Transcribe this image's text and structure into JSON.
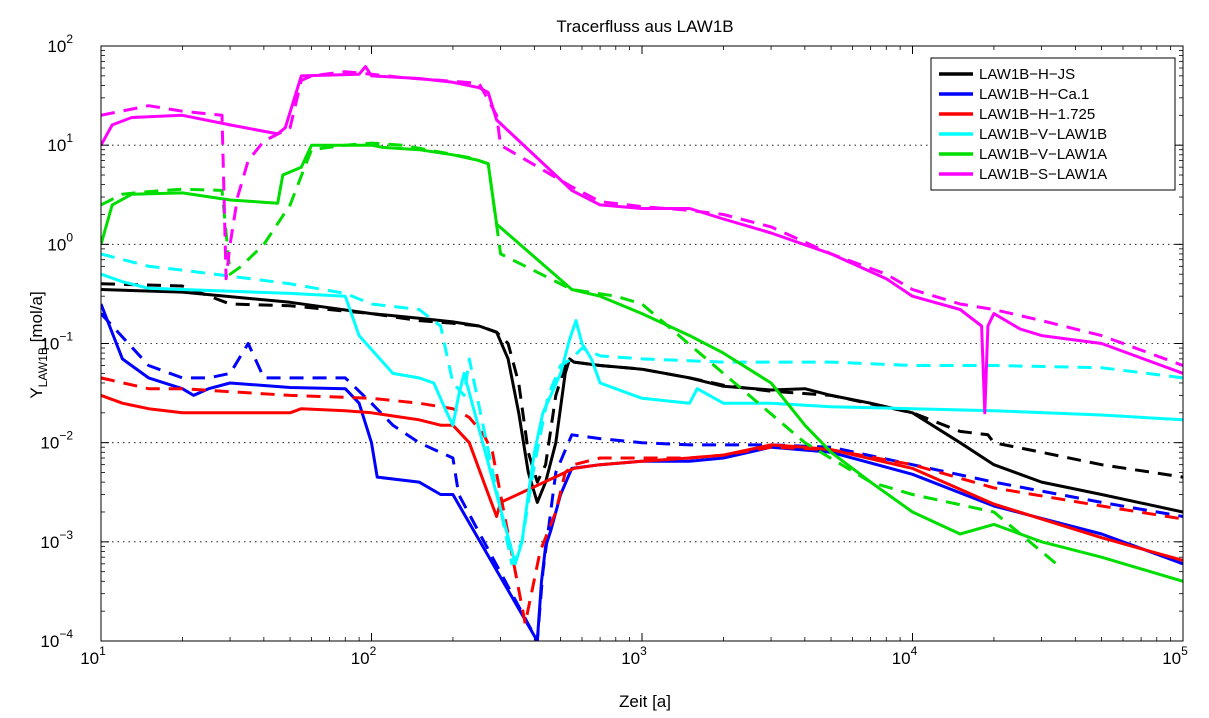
{
  "chart_data": {
    "type": "line",
    "title": "Tracerfluss aus LAW1B",
    "xlabel": "Zeit [a]",
    "ylabel": {
      "main": "Y",
      "subscript": "LAW1B",
      "unit": " [mol/a]"
    },
    "xscale": "log",
    "yscale": "log",
    "xlim": [
      10,
      100000
    ],
    "ylim": [
      0.0001,
      100
    ],
    "x_ticks": [
      10,
      100,
      1000,
      10000,
      100000
    ],
    "y_ticks": [
      0.0001,
      0.001,
      0.01,
      0.1,
      1,
      10,
      100
    ],
    "x_tick_labels": [
      {
        "base": "10",
        "exp": "1"
      },
      {
        "base": "10",
        "exp": "2"
      },
      {
        "base": "10",
        "exp": "3"
      },
      {
        "base": "10",
        "exp": "4"
      },
      {
        "base": "10",
        "exp": "5"
      }
    ],
    "y_tick_labels": [
      {
        "base": "10",
        "exp": "−4"
      },
      {
        "base": "10",
        "exp": "−3"
      },
      {
        "base": "10",
        "exp": "−2"
      },
      {
        "base": "10",
        "exp": "−1"
      },
      {
        "base": "10",
        "exp": "0"
      },
      {
        "base": "10",
        "exp": "1"
      },
      {
        "base": "10",
        "exp": "2"
      }
    ],
    "grid": "y-dotted",
    "legend_position": "top-right",
    "series": [
      {
        "name": "LAW1B−H−JS",
        "color": "#000000",
        "dash": "solid",
        "legend": true,
        "x": [
          10,
          20,
          50,
          100,
          150,
          200,
          250,
          290,
          320,
          350,
          380,
          410,
          440,
          480,
          520,
          540,
          560,
          700,
          1000,
          1500,
          2000,
          3000,
          4000,
          5000,
          7000,
          10000,
          15000,
          20000,
          30000,
          50000,
          100000
        ],
        "y": [
          0.35,
          0.33,
          0.26,
          0.2,
          0.18,
          0.165,
          0.15,
          0.13,
          0.07,
          0.02,
          0.005,
          0.0025,
          0.004,
          0.01,
          0.05,
          0.07,
          0.065,
          0.06,
          0.055,
          0.045,
          0.037,
          0.034,
          0.035,
          0.03,
          0.025,
          0.02,
          0.01,
          0.006,
          0.004,
          0.003,
          0.002
        ]
      },
      {
        "name": "LAW1B−H−JS",
        "color": "#000000",
        "dash": "dashed",
        "legend": false,
        "x": [
          10,
          20,
          30,
          50,
          100,
          150,
          200,
          250,
          290,
          320,
          350,
          380,
          410,
          440,
          480,
          520,
          560,
          700,
          1000,
          1500,
          2000,
          3000,
          5000,
          10000,
          15000,
          19000,
          20000,
          30000,
          50000,
          100000
        ],
        "y": [
          0.4,
          0.38,
          0.25,
          0.24,
          0.2,
          0.17,
          0.16,
          0.15,
          0.13,
          0.1,
          0.04,
          0.008,
          0.004,
          0.006,
          0.03,
          0.06,
          0.065,
          0.06,
          0.055,
          0.045,
          0.038,
          0.033,
          0.03,
          0.02,
          0.013,
          0.012,
          0.01,
          0.008,
          0.006,
          0.0045
        ]
      },
      {
        "name": "LAW1B−H−Ca.1",
        "color": "#0000ff",
        "dash": "solid",
        "legend": true,
        "x": [
          10,
          12,
          15,
          20,
          22,
          25,
          30,
          50,
          80,
          90,
          100,
          105,
          150,
          180,
          200,
          410,
          425,
          440,
          460,
          500,
          550,
          700,
          1000,
          1500,
          2000,
          3000,
          5000,
          10000,
          20000,
          50000,
          100000
        ],
        "y": [
          0.25,
          0.07,
          0.045,
          0.035,
          0.03,
          0.035,
          0.04,
          0.036,
          0.035,
          0.025,
          0.01,
          0.0045,
          0.004,
          0.003,
          0.003,
          0.0001,
          0.0004,
          0.0009,
          0.0013,
          0.003,
          0.0055,
          0.006,
          0.0065,
          0.0065,
          0.007,
          0.009,
          0.008,
          0.0048,
          0.0023,
          0.0012,
          0.0006
        ]
      },
      {
        "name": "LAW1B−H−Ca.1",
        "color": "#0000ff",
        "dash": "dashed",
        "legend": false,
        "x": [
          10,
          15,
          20,
          25,
          30,
          35,
          40,
          50,
          80,
          100,
          120,
          150,
          200,
          210,
          410,
          430,
          480,
          550,
          700,
          1000,
          1500,
          2000,
          3000,
          5000,
          10000,
          20000,
          50000,
          100000
        ],
        "y": [
          0.2,
          0.06,
          0.045,
          0.045,
          0.05,
          0.1,
          0.045,
          0.045,
          0.045,
          0.025,
          0.015,
          0.01,
          0.007,
          0.003,
          0.0001,
          0.0005,
          0.005,
          0.012,
          0.011,
          0.01,
          0.0095,
          0.0095,
          0.0095,
          0.009,
          0.006,
          0.004,
          0.0025,
          0.0018
        ]
      },
      {
        "name": "LAW1B−H−1.725",
        "color": "#ff0000",
        "dash": "solid",
        "legend": true,
        "x": [
          10,
          12,
          15,
          20,
          50,
          55,
          80,
          100,
          150,
          180,
          200,
          230,
          260,
          290,
          300,
          560,
          700,
          1000,
          1500,
          2000,
          3000,
          4000,
          5000,
          10000,
          20000,
          50000,
          100000
        ],
        "y": [
          0.03,
          0.025,
          0.022,
          0.02,
          0.02,
          0.022,
          0.021,
          0.02,
          0.017,
          0.015,
          0.015,
          0.01,
          0.004,
          0.0018,
          0.0025,
          0.0055,
          0.006,
          0.0065,
          0.007,
          0.0075,
          0.0095,
          0.009,
          0.0085,
          0.0055,
          0.0024,
          0.0011,
          0.00065
        ]
      },
      {
        "name": "LAW1B−H−1.725",
        "color": "#ff0000",
        "dash": "dashed",
        "legend": false,
        "x": [
          10,
          15,
          20,
          50,
          100,
          150,
          200,
          230,
          260,
          280,
          370,
          390,
          420,
          480,
          520,
          560,
          700,
          1000,
          1500,
          2000,
          3000,
          5000,
          10000,
          20000,
          50000,
          100000
        ],
        "y": [
          0.045,
          0.035,
          0.035,
          0.03,
          0.028,
          0.025,
          0.022,
          0.018,
          0.012,
          0.008,
          0.00015,
          0.0003,
          0.0008,
          0.002,
          0.005,
          0.006,
          0.007,
          0.007,
          0.007,
          0.0075,
          0.009,
          0.0085,
          0.006,
          0.0035,
          0.0023,
          0.0017
        ]
      },
      {
        "name": "LAW1B−V−LAW1B",
        "color": "#00ffff",
        "dash": "solid",
        "legend": true,
        "x": [
          10,
          12,
          15,
          20,
          50,
          80,
          90,
          120,
          150,
          170,
          190,
          200,
          210,
          220,
          340,
          360,
          380,
          400,
          430,
          460,
          500,
          540,
          570,
          600,
          650,
          700,
          1000,
          1500,
          1600,
          2000,
          3000,
          5000,
          10000,
          20000,
          50000,
          100000
        ],
        "y": [
          0.5,
          0.42,
          0.36,
          0.35,
          0.32,
          0.3,
          0.12,
          0.05,
          0.045,
          0.04,
          0.02,
          0.015,
          0.03,
          0.05,
          0.0006,
          0.001,
          0.003,
          0.008,
          0.02,
          0.03,
          0.05,
          0.11,
          0.17,
          0.1,
          0.07,
          0.04,
          0.028,
          0.025,
          0.035,
          0.025,
          0.025,
          0.023,
          0.022,
          0.021,
          0.019,
          0.017
        ]
      },
      {
        "name": "LAW1B−V−LAW1B",
        "color": "#00ffff",
        "dash": "dashed",
        "legend": false,
        "x": [
          10,
          15,
          20,
          50,
          80,
          100,
          150,
          180,
          200,
          220,
          230,
          330,
          360,
          400,
          450,
          500,
          550,
          600,
          700,
          1000,
          2000,
          3000,
          5000,
          10000,
          20000,
          50000,
          100000
        ],
        "y": [
          0.8,
          0.6,
          0.55,
          0.4,
          0.32,
          0.25,
          0.22,
          0.15,
          0.04,
          0.03,
          0.07,
          0.0006,
          0.001,
          0.006,
          0.03,
          0.06,
          0.07,
          0.09,
          0.075,
          0.07,
          0.065,
          0.065,
          0.065,
          0.06,
          0.06,
          0.057,
          0.045
        ]
      },
      {
        "name": "LAW1B−V−LAW1A",
        "color": "#00dd00",
        "dash": "solid",
        "legend": true,
        "x": [
          10,
          11,
          13,
          20,
          30,
          45,
          47,
          55,
          60,
          100,
          110,
          150,
          200,
          250,
          270,
          290,
          550,
          700,
          1000,
          1500,
          2000,
          3000,
          4000,
          5000,
          7000,
          10000,
          15000,
          20000,
          30000,
          50000,
          100000
        ],
        "y": [
          1.0,
          2.5,
          3.2,
          3.3,
          2.8,
          2.6,
          5.0,
          6.0,
          10.0,
          10.0,
          9.5,
          9.0,
          8.0,
          7.0,
          6.5,
          1.6,
          0.35,
          0.3,
          0.2,
          0.12,
          0.08,
          0.04,
          0.015,
          0.008,
          0.004,
          0.002,
          0.0012,
          0.0015,
          0.001,
          0.0007,
          0.0004
        ]
      },
      {
        "name": "LAW1B−V−LAW1A",
        "color": "#00dd00",
        "dash": "dashed",
        "legend": false,
        "x": [
          10,
          12,
          15,
          20,
          28,
          30,
          33,
          40,
          50,
          60,
          80,
          100,
          130,
          180,
          230,
          270,
          300,
          550,
          800,
          1000,
          2000,
          4000,
          7000,
          10000,
          20000,
          34000
        ],
        "y": [
          2.5,
          3.2,
          3.4,
          3.6,
          3.5,
          0.5,
          0.6,
          1.0,
          2.5,
          9.0,
          10.0,
          10.5,
          10.0,
          8.5,
          7.5,
          6.5,
          0.8,
          0.35,
          0.3,
          0.25,
          0.05,
          0.01,
          0.004,
          0.003,
          0.002,
          0.0006
        ]
      },
      {
        "name": "LAW1B−S−LAW1A",
        "color": "#ff00ff",
        "dash": "solid",
        "legend": true,
        "x": [
          10,
          11,
          13,
          20,
          30,
          45,
          48,
          55,
          90,
          95,
          100,
          150,
          200,
          250,
          270,
          290,
          550,
          700,
          1000,
          1500,
          2000,
          3000,
          5000,
          8000,
          10000,
          15000,
          18000,
          18500,
          19000,
          20000,
          25000,
          30000,
          50000,
          100000
        ],
        "y": [
          10.0,
          16.0,
          19.0,
          20.0,
          16.0,
          13.0,
          15.0,
          50.0,
          52.0,
          62.0,
          50.0,
          47.0,
          43.0,
          38.0,
          34.0,
          18.0,
          3.5,
          2.5,
          2.3,
          2.3,
          1.8,
          1.3,
          0.8,
          0.45,
          0.3,
          0.22,
          0.15,
          0.02,
          0.15,
          0.2,
          0.14,
          0.12,
          0.1,
          0.05
        ]
      },
      {
        "name": "LAW1B−S−LAW1A",
        "color": "#ff00ff",
        "dash": "dashed",
        "legend": false,
        "x": [
          10,
          15,
          20,
          28,
          29,
          30,
          32,
          35,
          40,
          50,
          55,
          60,
          80,
          100,
          130,
          180,
          250,
          290,
          300,
          550,
          700,
          1000,
          1500,
          2000,
          3000,
          5000,
          8000,
          10000,
          15000,
          20000,
          30000,
          50000,
          100000
        ],
        "y": [
          20.0,
          25.0,
          22.0,
          20.0,
          0.45,
          1.0,
          3.0,
          7.0,
          11.0,
          15.0,
          45.0,
          50.0,
          55.0,
          52.0,
          48.0,
          45.0,
          42.0,
          20.0,
          10.0,
          3.8,
          2.7,
          2.4,
          2.2,
          2.0,
          1.5,
          0.8,
          0.5,
          0.35,
          0.25,
          0.22,
          0.17,
          0.12,
          0.06
        ]
      }
    ]
  }
}
